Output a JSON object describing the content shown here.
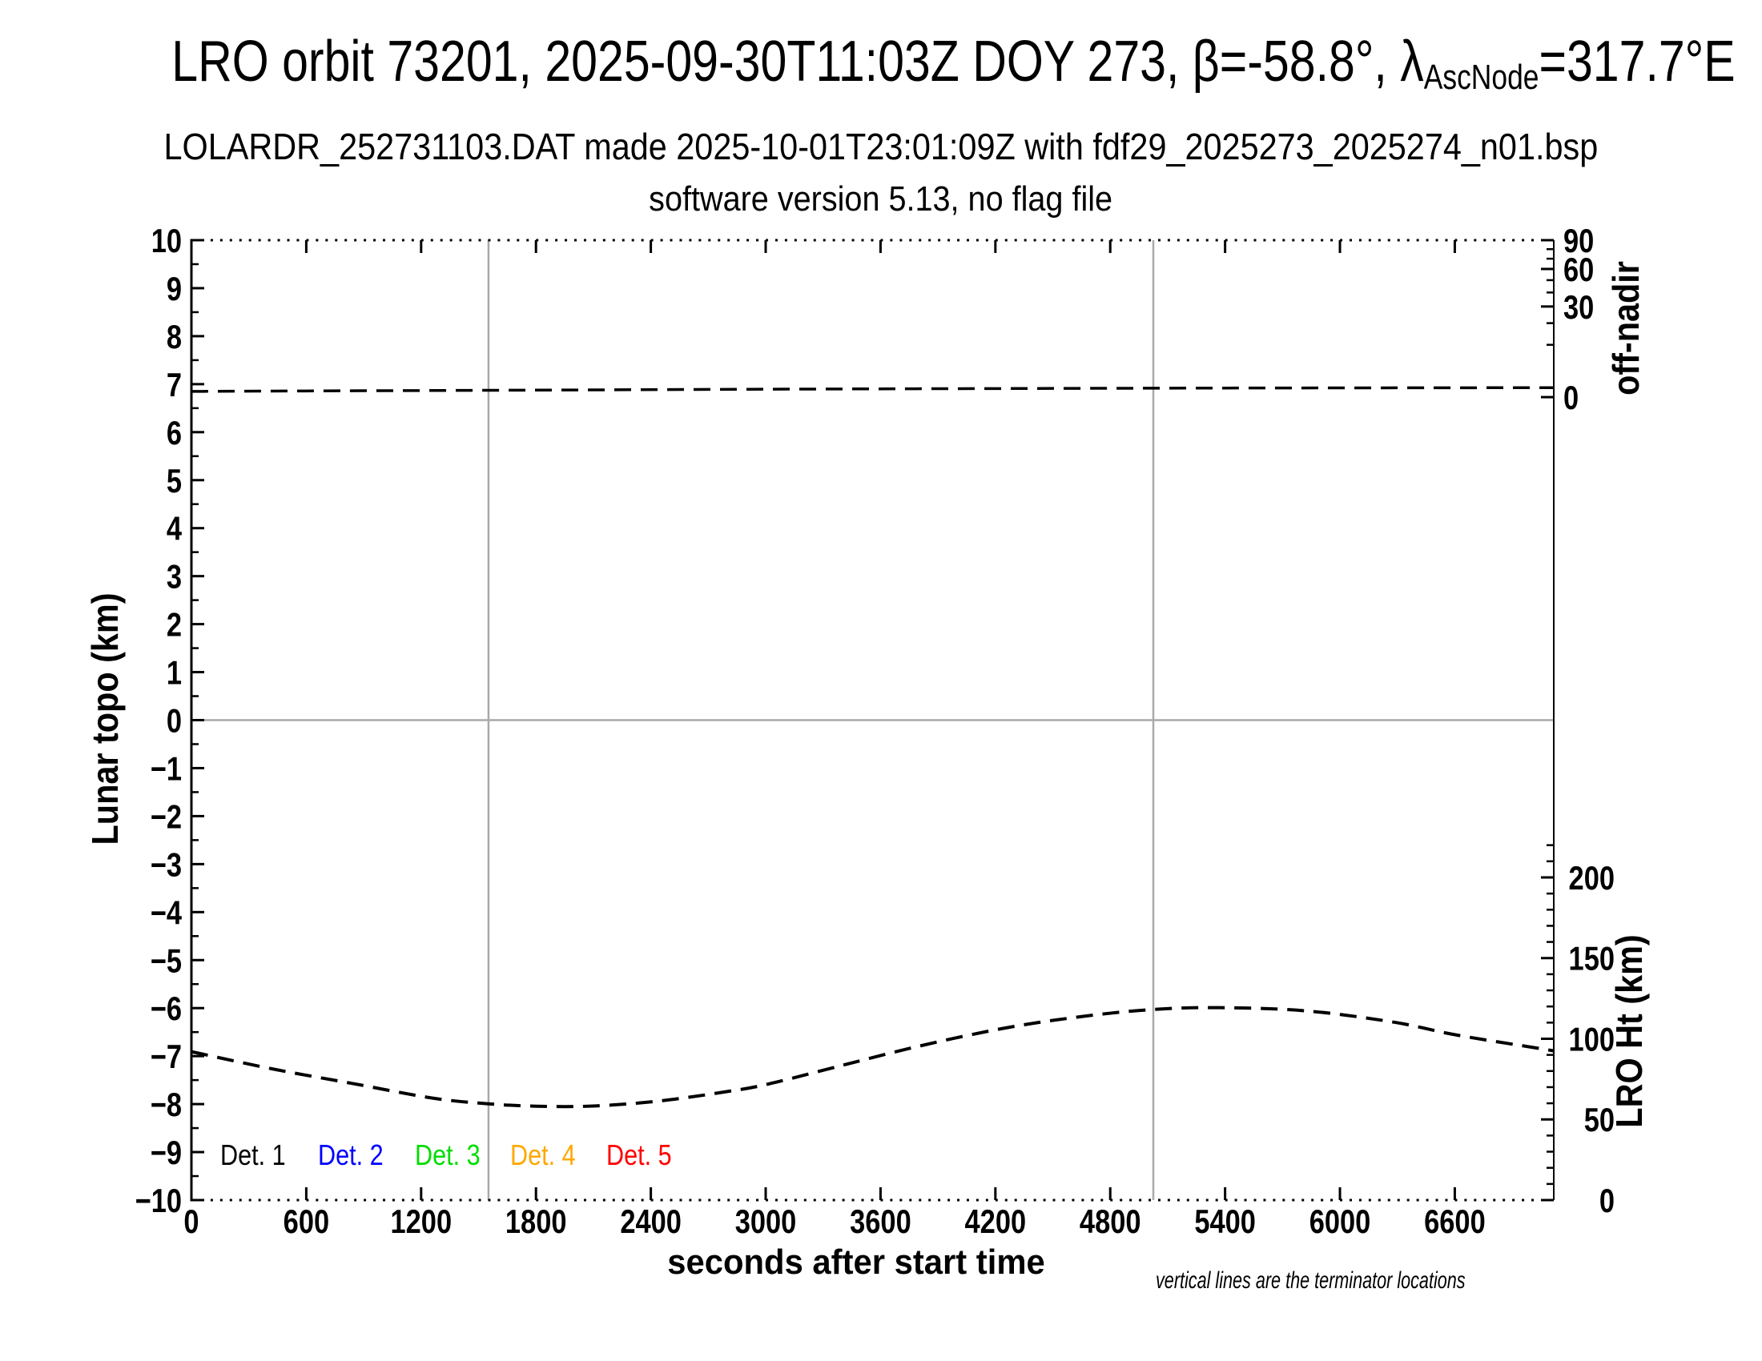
{
  "title": {
    "line1_prefix": "LRO orbit 73201, 2025-09-30T11:03Z DOY 273, β=-58.8°, λ",
    "line1_sub": "AscNode",
    "line1_suffix": "=317.7°E",
    "line2": "LOLARDR_252731103.DAT made 2025-10-01T23:01:09Z with fdf29_2025273_2025274_n01.bsp",
    "line3": "software version 5.13, no flag file"
  },
  "footnote": "vertical lines are the terminator locations",
  "colors": {
    "axis": "#000000",
    "grid_gray": "#a9a9a9"
  },
  "chart_data": {
    "type": "line",
    "xlabel": "seconds after start time",
    "x_range": [
      0,
      7117
    ],
    "x_major_ticks": [
      0,
      600,
      1200,
      1800,
      2400,
      3000,
      3600,
      4200,
      4800,
      5400,
      6000,
      6600
    ],
    "x_minor_step": 50,
    "left_axis": {
      "label": "Lunar topo (km)",
      "range": [
        -10,
        10
      ],
      "major_step": 1,
      "minor_step": 0.5
    },
    "right_axis_offnadir": {
      "label": "off-nadir",
      "major_ticks_deg": [
        90,
        60,
        30,
        0
      ],
      "minor_step_deg": 10,
      "scale": "sqrt",
      "topo_at_0deg": 6.73,
      "topo_at_90deg": 10
    },
    "right_axis_ht": {
      "label": "LRO Ht (km)",
      "major_ticks_km": [
        200,
        150,
        100,
        50,
        0
      ],
      "minor_step_km": 10,
      "minor_max_km": 220,
      "km_per_topo_unit": 29.75,
      "km_at_bottom": 0
    },
    "terminator_lines_s": [
      1552,
      5025
    ],
    "zero_line_topo": 0,
    "series": [
      {
        "name": "spacecraft off-nadir angle",
        "axis": "offnadir",
        "style": "dashed",
        "color": "#000000",
        "points": [
          [
            0,
            0.12
          ],
          [
            1800,
            0.18
          ],
          [
            3600,
            0.25
          ],
          [
            5400,
            0.3
          ],
          [
            7117,
            0.33
          ]
        ]
      },
      {
        "name": "LRO height",
        "axis": "ht",
        "style": "dashed",
        "color": "#000000",
        "points": [
          [
            0,
            92
          ],
          [
            420,
            81.4
          ],
          [
            840,
            72.3
          ],
          [
            1260,
            63.2
          ],
          [
            1550,
            59.7
          ],
          [
            1800,
            58.2
          ],
          [
            2100,
            58.3
          ],
          [
            2450,
            61.5
          ],
          [
            2800,
            67.3
          ],
          [
            3016,
            72
          ],
          [
            3400,
            83.5
          ],
          [
            3800,
            95.4
          ],
          [
            4230,
            106.2
          ],
          [
            4600,
            113
          ],
          [
            4983,
            117.8
          ],
          [
            5350,
            119.3
          ],
          [
            5820,
            117.3
          ],
          [
            6280,
            110.3
          ],
          [
            6600,
            102.5
          ],
          [
            7000,
            94.8
          ],
          [
            7117,
            92.5
          ]
        ]
      }
    ],
    "legend": [
      {
        "label": "Det. 1",
        "color": "#000000"
      },
      {
        "label": "Det. 2",
        "color": "#0000ff"
      },
      {
        "label": "Det. 3",
        "color": "#00dc00"
      },
      {
        "label": "Det. 4",
        "color": "#ffa800"
      },
      {
        "label": "Det. 5",
        "color": "#ff0000"
      }
    ]
  }
}
